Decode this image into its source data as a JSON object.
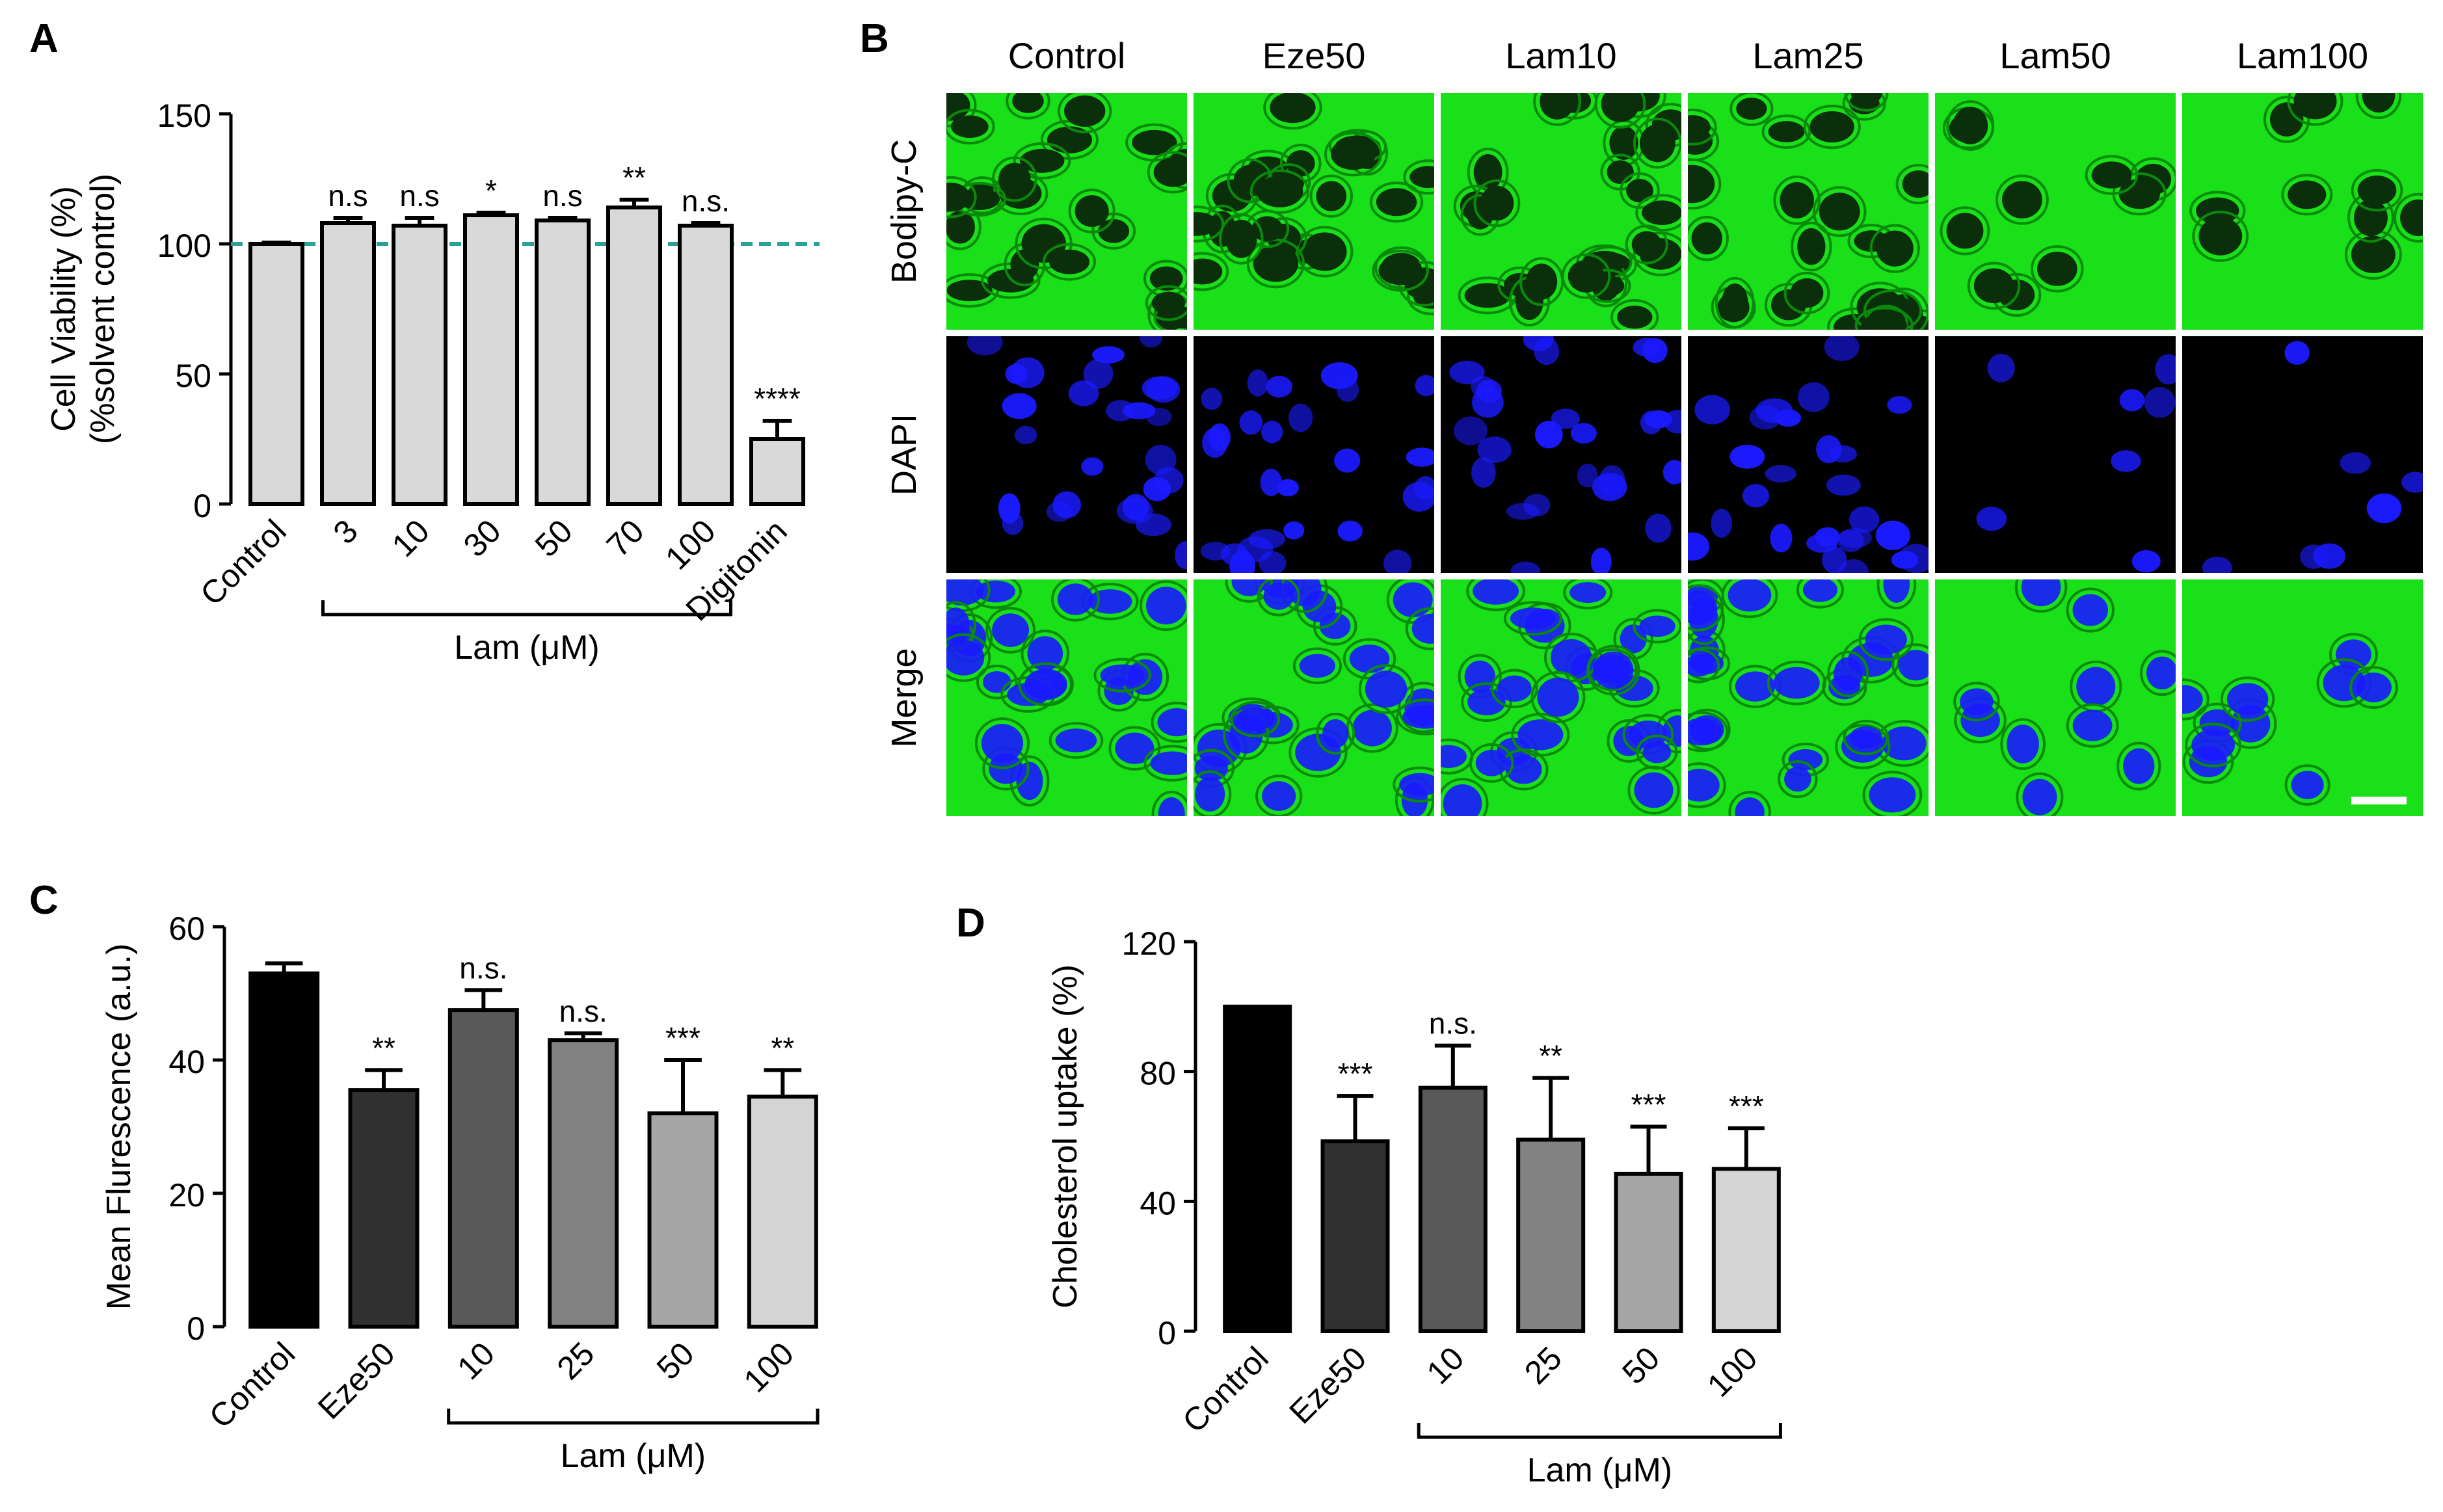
{
  "figure": {
    "panel_letters": [
      "A",
      "B",
      "C",
      "D"
    ],
    "scale_bar": "scale bar"
  },
  "chart_data": [
    {
      "panel": "A",
      "type": "bar",
      "title": "",
      "xlabel": "",
      "ylabel": [
        "Cell Viability (%)",
        "(%solvent control)"
      ],
      "ylim": [
        0,
        150
      ],
      "yticks": [
        0,
        50,
        100,
        150
      ],
      "categories": [
        "Control",
        "3",
        "10",
        "30",
        "50",
        "70",
        "100",
        "Digitonin"
      ],
      "values": [
        100,
        108,
        107,
        111,
        109,
        114,
        107,
        25
      ],
      "errors": [
        0.5,
        2,
        3,
        1,
        1,
        3,
        1,
        7
      ],
      "significance": [
        "",
        "n.s",
        "n.s",
        "*",
        "n.s",
        "**",
        "n.s.",
        "****"
      ],
      "reference_line": 100,
      "bar_color": "#d9d9d9",
      "reference_color": "#2aa198",
      "group_bracket": {
        "label": "Lam (μM)",
        "from": 1,
        "to": 6
      }
    },
    {
      "panel": "B",
      "type": "image_grid",
      "columns": [
        "Control",
        "Eze50",
        "Lam10",
        "Lam25",
        "Lam50",
        "Lam100"
      ],
      "rows": [
        "Bodipy-C",
        "DAPI",
        "Merge"
      ],
      "colors": {
        "bodipy": "#19e019",
        "dapi": "#1a1aff",
        "background": "#000000"
      }
    },
    {
      "panel": "C",
      "type": "bar",
      "title": "",
      "xlabel": "",
      "ylabel": "Mean Flurescence (a.u.)",
      "ylim": [
        0,
        60
      ],
      "yticks": [
        0,
        20,
        40,
        60
      ],
      "categories": [
        "Control",
        "Eze50",
        "10",
        "25",
        "50",
        "100"
      ],
      "values": [
        53,
        35.5,
        47.5,
        43,
        32,
        34.5
      ],
      "errors": [
        1.5,
        3,
        3,
        1,
        8,
        4
      ],
      "significance": [
        "",
        "**",
        "n.s.",
        "n.s.",
        "***",
        "**"
      ],
      "bar_colors": [
        "#000000",
        "#303030",
        "#595959",
        "#828282",
        "#a6a6a6",
        "#d4d4d4"
      ],
      "group_bracket": {
        "label": "Lam (μM)",
        "from": 2,
        "to": 5
      }
    },
    {
      "panel": "D",
      "type": "bar",
      "title": "",
      "xlabel": "",
      "ylabel": "Cholesterol uptake (%)",
      "ylim": [
        0,
        120
      ],
      "yticks": [
        0,
        40,
        80,
        120
      ],
      "categories": [
        "Control",
        "Eze50",
        "10",
        "25",
        "50",
        "100"
      ],
      "values": [
        100,
        58.5,
        75,
        59,
        48.5,
        50
      ],
      "errors": [
        0,
        14,
        13,
        19,
        14.5,
        12.5
      ],
      "significance": [
        "",
        "***",
        "n.s.",
        "**",
        "***",
        "***"
      ],
      "bar_colors": [
        "#000000",
        "#303030",
        "#595959",
        "#828282",
        "#a6a6a6",
        "#d4d4d4"
      ],
      "group_bracket": {
        "label": "Lam (μM)",
        "from": 2,
        "to": 5
      }
    }
  ]
}
